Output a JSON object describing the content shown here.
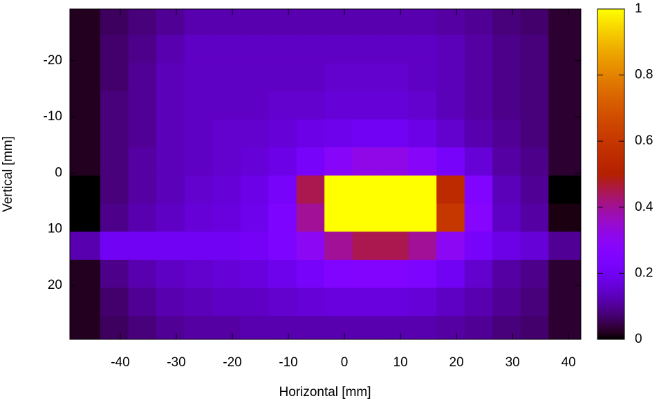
{
  "chart_data": {
    "type": "heatmap",
    "xlabel": "Horizontal [mm]",
    "ylabel": "Vertical [mm]",
    "x": [
      -46,
      -41,
      -36,
      -31,
      -26,
      -21,
      -16,
      -11,
      -6,
      -1,
      4,
      9,
      14,
      19,
      24,
      29,
      34,
      39
    ],
    "y": [
      -27,
      -22,
      -17,
      -12,
      -7,
      -2,
      3,
      8,
      13,
      18,
      23,
      28
    ],
    "z": [
      [
        0.02,
        0.06,
        0.08,
        0.1,
        0.12,
        0.12,
        0.12,
        0.12,
        0.12,
        0.12,
        0.12,
        0.12,
        0.12,
        0.11,
        0.1,
        0.08,
        0.07,
        0.03
      ],
      [
        0.02,
        0.07,
        0.09,
        0.12,
        0.14,
        0.14,
        0.14,
        0.14,
        0.14,
        0.14,
        0.14,
        0.14,
        0.14,
        0.13,
        0.11,
        0.09,
        0.08,
        0.03
      ],
      [
        0.02,
        0.07,
        0.1,
        0.13,
        0.14,
        0.14,
        0.14,
        0.14,
        0.14,
        0.15,
        0.15,
        0.15,
        0.14,
        0.13,
        0.11,
        0.09,
        0.08,
        0.03
      ],
      [
        0.02,
        0.08,
        0.1,
        0.13,
        0.14,
        0.14,
        0.14,
        0.15,
        0.15,
        0.16,
        0.16,
        0.16,
        0.15,
        0.13,
        0.11,
        0.09,
        0.08,
        0.03
      ],
      [
        0.02,
        0.08,
        0.1,
        0.13,
        0.14,
        0.15,
        0.15,
        0.16,
        0.18,
        0.19,
        0.2,
        0.2,
        0.18,
        0.15,
        0.12,
        0.1,
        0.08,
        0.03
      ],
      [
        0.02,
        0.08,
        0.11,
        0.13,
        0.14,
        0.15,
        0.16,
        0.18,
        0.22,
        0.28,
        0.32,
        0.32,
        0.28,
        0.22,
        0.16,
        0.11,
        0.09,
        0.03
      ],
      [
        0,
        0.08,
        0.11,
        0.13,
        0.15,
        0.16,
        0.18,
        0.22,
        0.45,
        1,
        1,
        1,
        1,
        0.55,
        0.25,
        0.13,
        0.1,
        0
      ],
      [
        0,
        0.09,
        0.12,
        0.14,
        0.16,
        0.17,
        0.19,
        0.24,
        0.4,
        1,
        1,
        1,
        1,
        0.6,
        0.27,
        0.14,
        0.11,
        0.01
      ],
      [
        0.12,
        0.2,
        0.2,
        0.2,
        0.2,
        0.2,
        0.21,
        0.24,
        0.3,
        0.4,
        0.45,
        0.45,
        0.4,
        0.3,
        0.22,
        0.18,
        0.16,
        0.1
      ],
      [
        0.02,
        0.09,
        0.12,
        0.14,
        0.15,
        0.16,
        0.17,
        0.19,
        0.22,
        0.25,
        0.26,
        0.26,
        0.24,
        0.2,
        0.15,
        0.11,
        0.09,
        0.03
      ],
      [
        0.02,
        0.07,
        0.1,
        0.12,
        0.13,
        0.14,
        0.14,
        0.15,
        0.16,
        0.17,
        0.17,
        0.17,
        0.16,
        0.14,
        0.12,
        0.1,
        0.08,
        0.03
      ],
      [
        0.02,
        0.06,
        0.08,
        0.1,
        0.11,
        0.11,
        0.12,
        0.12,
        0.12,
        0.12,
        0.12,
        0.12,
        0.12,
        0.11,
        0.1,
        0.08,
        0.07,
        0.03
      ]
    ],
    "xlim": [
      -49,
      42.2
    ],
    "xticks": [
      -40,
      -30,
      -20,
      -10,
      0,
      10,
      20,
      30,
      40
    ],
    "ylim": [
      -29.2,
      29.6
    ],
    "yticks": [
      -20,
      -10,
      0,
      10,
      20
    ],
    "y_reversed": true,
    "zlim": [
      0,
      1
    ],
    "zticks": [
      0,
      0.2,
      0.4,
      0.6,
      0.8,
      1
    ],
    "colormap": "gnuplot"
  }
}
